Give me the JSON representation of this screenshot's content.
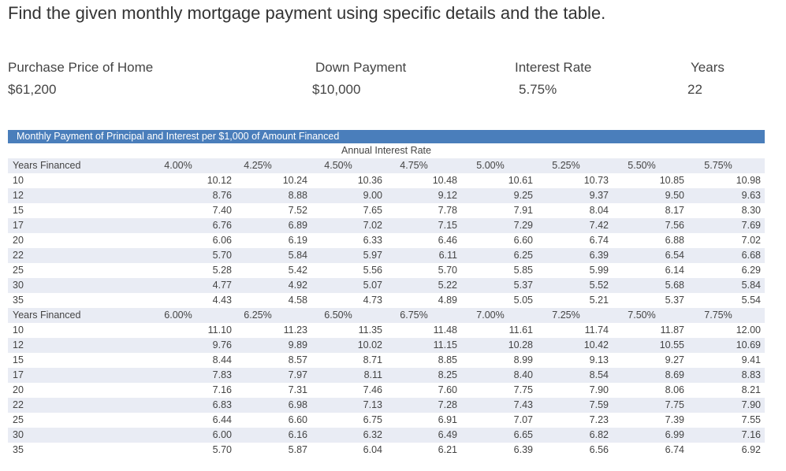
{
  "title": "Find the given monthly mortgage payment using specific details and the table.",
  "details": {
    "purchase_price_label": "Purchase Price of Home",
    "purchase_price_value": "$61,200",
    "down_payment_label": "Down Payment",
    "down_payment_value": "$10,000",
    "interest_rate_label": "Interest Rate",
    "interest_rate_value": "5.75%",
    "years_label": "Years",
    "years_value": "22"
  },
  "table": {
    "header": "Monthly Payment of Principal and Interest per $1,000 of Amount Financed",
    "subheader": "Annual Interest Rate",
    "sections": [
      {
        "label": "Years Financed",
        "rates": [
          "4.00%",
          "4.25%",
          "4.50%",
          "4.75%",
          "5.00%",
          "5.25%",
          "5.50%",
          "5.75%"
        ],
        "rows": [
          {
            "years": "10",
            "values": [
              "10.12",
              "10.24",
              "10.36",
              "10.48",
              "10.61",
              "10.73",
              "10.85",
              "10.98"
            ]
          },
          {
            "years": "12",
            "values": [
              "8.76",
              "8.88",
              "9.00",
              "9.12",
              "9.25",
              "9.37",
              "9.50",
              "9.63"
            ]
          },
          {
            "years": "15",
            "values": [
              "7.40",
              "7.52",
              "7.65",
              "7.78",
              "7.91",
              "8.04",
              "8.17",
              "8.30"
            ]
          },
          {
            "years": "17",
            "values": [
              "6.76",
              "6.89",
              "7.02",
              "7.15",
              "7.29",
              "7.42",
              "7.56",
              "7.69"
            ]
          },
          {
            "years": "20",
            "values": [
              "6.06",
              "6.19",
              "6.33",
              "6.46",
              "6.60",
              "6.74",
              "6.88",
              "7.02"
            ]
          },
          {
            "years": "22",
            "values": [
              "5.70",
              "5.84",
              "5.97",
              "6.11",
              "6.25",
              "6.39",
              "6.54",
              "6.68"
            ]
          },
          {
            "years": "25",
            "values": [
              "5.28",
              "5.42",
              "5.56",
              "5.70",
              "5.85",
              "5.99",
              "6.14",
              "6.29"
            ]
          },
          {
            "years": "30",
            "values": [
              "4.77",
              "4.92",
              "5.07",
              "5.22",
              "5.37",
              "5.52",
              "5.68",
              "5.84"
            ]
          },
          {
            "years": "35",
            "values": [
              "4.43",
              "4.58",
              "4.73",
              "4.89",
              "5.05",
              "5.21",
              "5.37",
              "5.54"
            ]
          }
        ]
      },
      {
        "label": "Years Financed",
        "rates": [
          "6.00%",
          "6.25%",
          "6.50%",
          "6.75%",
          "7.00%",
          "7.25%",
          "7.50%",
          "7.75%"
        ],
        "rows": [
          {
            "years": "10",
            "values": [
              "11.10",
              "11.23",
              "11.35",
              "11.48",
              "11.61",
              "11.74",
              "11.87",
              "12.00"
            ]
          },
          {
            "years": "12",
            "values": [
              "9.76",
              "9.89",
              "10.02",
              "11.15",
              "10.28",
              "10.42",
              "10.55",
              "10.69"
            ]
          },
          {
            "years": "15",
            "values": [
              "8.44",
              "8.57",
              "8.71",
              "8.85",
              "8.99",
              "9.13",
              "9.27",
              "9.41"
            ]
          },
          {
            "years": "17",
            "values": [
              "7.83",
              "7.97",
              "8.11",
              "8.25",
              "8.40",
              "8.54",
              "8.69",
              "8.83"
            ]
          },
          {
            "years": "20",
            "values": [
              "7.16",
              "7.31",
              "7.46",
              "7.60",
              "7.75",
              "7.90",
              "8.06",
              "8.21"
            ]
          },
          {
            "years": "22",
            "values": [
              "6.83",
              "6.98",
              "7.13",
              "7.28",
              "7.43",
              "7.59",
              "7.75",
              "7.90"
            ]
          },
          {
            "years": "25",
            "values": [
              "6.44",
              "6.60",
              "6.75",
              "6.91",
              "7.07",
              "7.23",
              "7.39",
              "7.55"
            ]
          },
          {
            "years": "30",
            "values": [
              "6.00",
              "6.16",
              "6.32",
              "6.49",
              "6.65",
              "6.82",
              "6.99",
              "7.16"
            ]
          },
          {
            "years": "35",
            "values": [
              "5.70",
              "5.87",
              "6.04",
              "6.21",
              "6.39",
              "6.56",
              "6.74",
              "6.92"
            ]
          }
        ]
      }
    ]
  }
}
